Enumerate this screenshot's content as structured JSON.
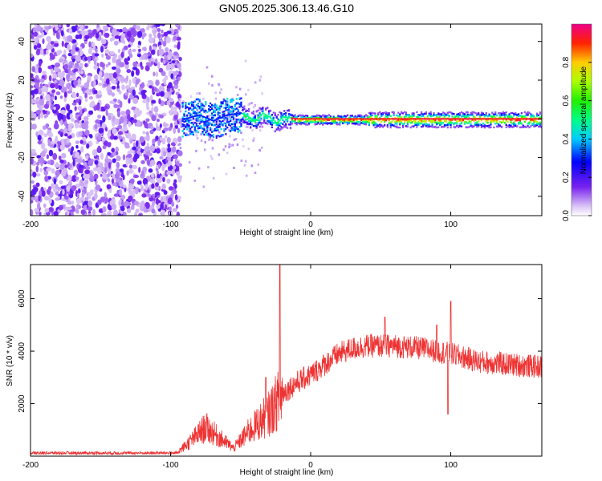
{
  "title": "GN05.2025.306.13.46.G10",
  "colors": {
    "snr_line": "#ee3333",
    "frame": "#000000"
  },
  "chart_data": [
    {
      "type": "heatmap",
      "xlabel": "Height of straight line (km)",
      "ylabel": "Frequency (Hz)",
      "xlim": [
        -200,
        165
      ],
      "ylim": [
        -50,
        49
      ],
      "x_ticks": [
        "-200",
        "-100",
        "0",
        "100"
      ],
      "x_tick_values": [
        -200,
        -100,
        0,
        100
      ],
      "y_ticks": [
        "-40",
        "-20",
        "0",
        "20",
        "40"
      ],
      "y_tick_values": [
        -40,
        -20,
        0,
        20,
        40
      ],
      "ridge": [
        {
          "x": -90,
          "y": 0
        },
        {
          "x": -80,
          "y": 2
        },
        {
          "x": -70,
          "y": -1
        },
        {
          "x": -60,
          "y": 2
        },
        {
          "x": -50,
          "y": 3
        },
        {
          "x": -40,
          "y": -1
        },
        {
          "x": -35,
          "y": 3
        },
        {
          "x": -30,
          "y": 1
        },
        {
          "x": -25,
          "y": -2
        },
        {
          "x": -20,
          "y": 1
        },
        {
          "x": -10,
          "y": 0
        },
        {
          "x": 0,
          "y": 0
        },
        {
          "x": 50,
          "y": 0
        },
        {
          "x": 100,
          "y": 0
        },
        {
          "x": 165,
          "y": 0
        }
      ],
      "colorbar": {
        "label": "Normalized spectral amplitude",
        "ticks": [
          "0.0",
          "0.2",
          "0.4",
          "0.6",
          "0.8"
        ],
        "tick_values": [
          0.0,
          0.2,
          0.4,
          0.6,
          0.8
        ],
        "range": [
          0,
          1
        ]
      }
    },
    {
      "type": "line",
      "xlabel": "Height of straight line (km)",
      "ylabel": "SNR (10 * v/v)",
      "xlim": [
        -200,
        165
      ],
      "ylim": [
        0,
        7300
      ],
      "x_ticks": [
        "-200",
        "-100",
        "0",
        "100"
      ],
      "x_tick_values": [
        -200,
        -100,
        0,
        100
      ],
      "y_ticks": [
        "2000",
        "4000",
        "6000"
      ],
      "y_tick_values": [
        2000,
        4000,
        6000
      ],
      "envelope": [
        {
          "x": -200,
          "y": 100
        },
        {
          "x": -120,
          "y": 100
        },
        {
          "x": -95,
          "y": 150
        },
        {
          "x": -85,
          "y": 600
        },
        {
          "x": -75,
          "y": 1100
        },
        {
          "x": -65,
          "y": 700
        },
        {
          "x": -55,
          "y": 300
        },
        {
          "x": -45,
          "y": 900
        },
        {
          "x": -30,
          "y": 1600
        },
        {
          "x": -25,
          "y": 2000
        },
        {
          "x": -20,
          "y": 2400
        },
        {
          "x": -10,
          "y": 2800
        },
        {
          "x": 0,
          "y": 3100
        },
        {
          "x": 10,
          "y": 3500
        },
        {
          "x": 20,
          "y": 3900
        },
        {
          "x": 30,
          "y": 4100
        },
        {
          "x": 40,
          "y": 4200
        },
        {
          "x": 60,
          "y": 4200
        },
        {
          "x": 80,
          "y": 4100
        },
        {
          "x": 100,
          "y": 3900
        },
        {
          "x": 120,
          "y": 3600
        },
        {
          "x": 140,
          "y": 3500
        },
        {
          "x": 165,
          "y": 3400
        }
      ],
      "spikes": [
        {
          "x": -22,
          "y": 7300
        },
        {
          "x": -32,
          "y": 3000
        },
        {
          "x": 100,
          "y": 5900
        },
        {
          "x": 53,
          "y": 5300
        },
        {
          "x": 90,
          "y": 5000
        },
        {
          "x": 98,
          "y": 1600
        }
      ]
    }
  ]
}
